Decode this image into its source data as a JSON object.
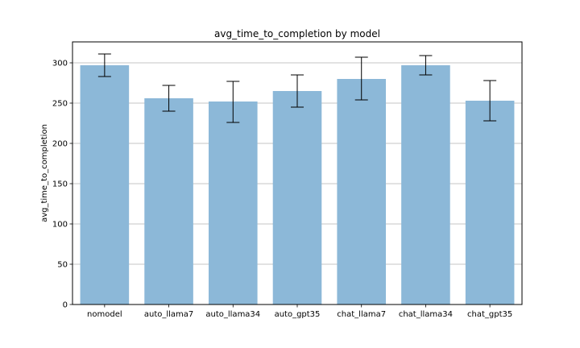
{
  "chart_data": {
    "type": "bar",
    "title": "avg_time_to_completion by model",
    "xlabel": "",
    "ylabel": "avg_time_to_completion",
    "categories": [
      "nomodel",
      "auto_llama7",
      "auto_llama34",
      "auto_gpt35",
      "chat_llama7",
      "chat_llama34",
      "chat_gpt35"
    ],
    "values": [
      297,
      256,
      252,
      265,
      280,
      297,
      253
    ],
    "error_low": [
      283,
      240,
      226,
      245,
      254,
      285,
      228
    ],
    "error_high": [
      311,
      272,
      277,
      285,
      307,
      309,
      278
    ],
    "ylim": [
      0,
      326
    ],
    "yticks": [
      0,
      50,
      100,
      150,
      200,
      250,
      300
    ],
    "grid": "y-major",
    "legend": "none",
    "bar_color": "#8cb8d8",
    "grid_color": "#b0b0b0",
    "error_color": "#000000"
  }
}
